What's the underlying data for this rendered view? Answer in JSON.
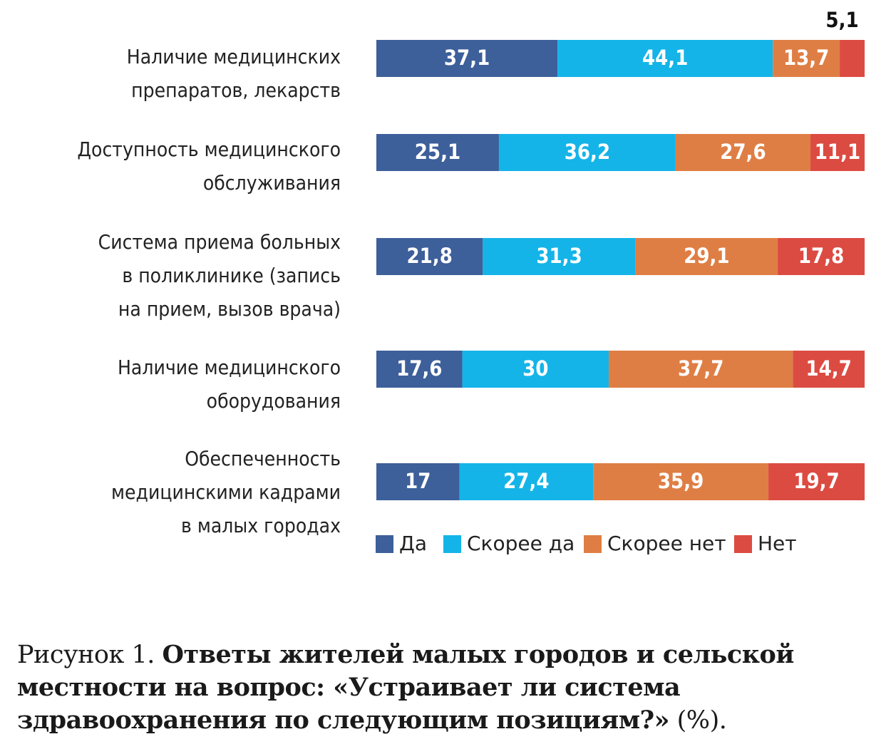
{
  "chart_data": {
    "type": "bar",
    "orientation": "horizontal",
    "stacked": true,
    "categories": [
      [
        "Наличие медицинских",
        "препаратов, лекарств"
      ],
      [
        "Доступность медицинского",
        "обслуживания"
      ],
      [
        "Система приема больных",
        "в поликлинике (запись",
        "на прием, вызов врача)"
      ],
      [
        "Наличие медицинского",
        "оборудования"
      ],
      [
        "Обеспеченность",
        "медицинскими кадрами",
        "в малых городах"
      ]
    ],
    "series": [
      {
        "name": "Да",
        "color": "#3d5f9a",
        "values": [
          37.1,
          25.1,
          21.8,
          17.6,
          17
        ],
        "labels": [
          "37,1",
          "25,1",
          "21,8",
          "17,6",
          "17"
        ]
      },
      {
        "name": "Скорее да",
        "color": "#14b4e8",
        "values": [
          44.1,
          36.2,
          31.3,
          30,
          27.4
        ],
        "labels": [
          "44,1",
          "36,2",
          "31,3",
          "30",
          "27,4"
        ]
      },
      {
        "name": "Скорее нет",
        "color": "#df7e44",
        "values": [
          13.7,
          27.6,
          29.1,
          37.7,
          35.9
        ],
        "labels": [
          "13,7",
          "27,6",
          "29,1",
          "37,7",
          "35,9"
        ]
      },
      {
        "name": "Нет",
        "color": "#dc4b42",
        "values": [
          5.1,
          11.1,
          17.8,
          14.7,
          19.7
        ],
        "labels": [
          "5,1",
          "11,1",
          "17,8",
          "14,7",
          "19,7"
        ]
      }
    ],
    "xlim": [
      0,
      100
    ],
    "grid": false,
    "legend_position": "bottom"
  },
  "caption": {
    "prefix": "Рисунок 1.",
    "title": "Ответы жителей малых городов и сельской местности на вопрос: «Устраивает ли система здравоохранения по следующим позициям?»",
    "suffix": "(%)."
  }
}
